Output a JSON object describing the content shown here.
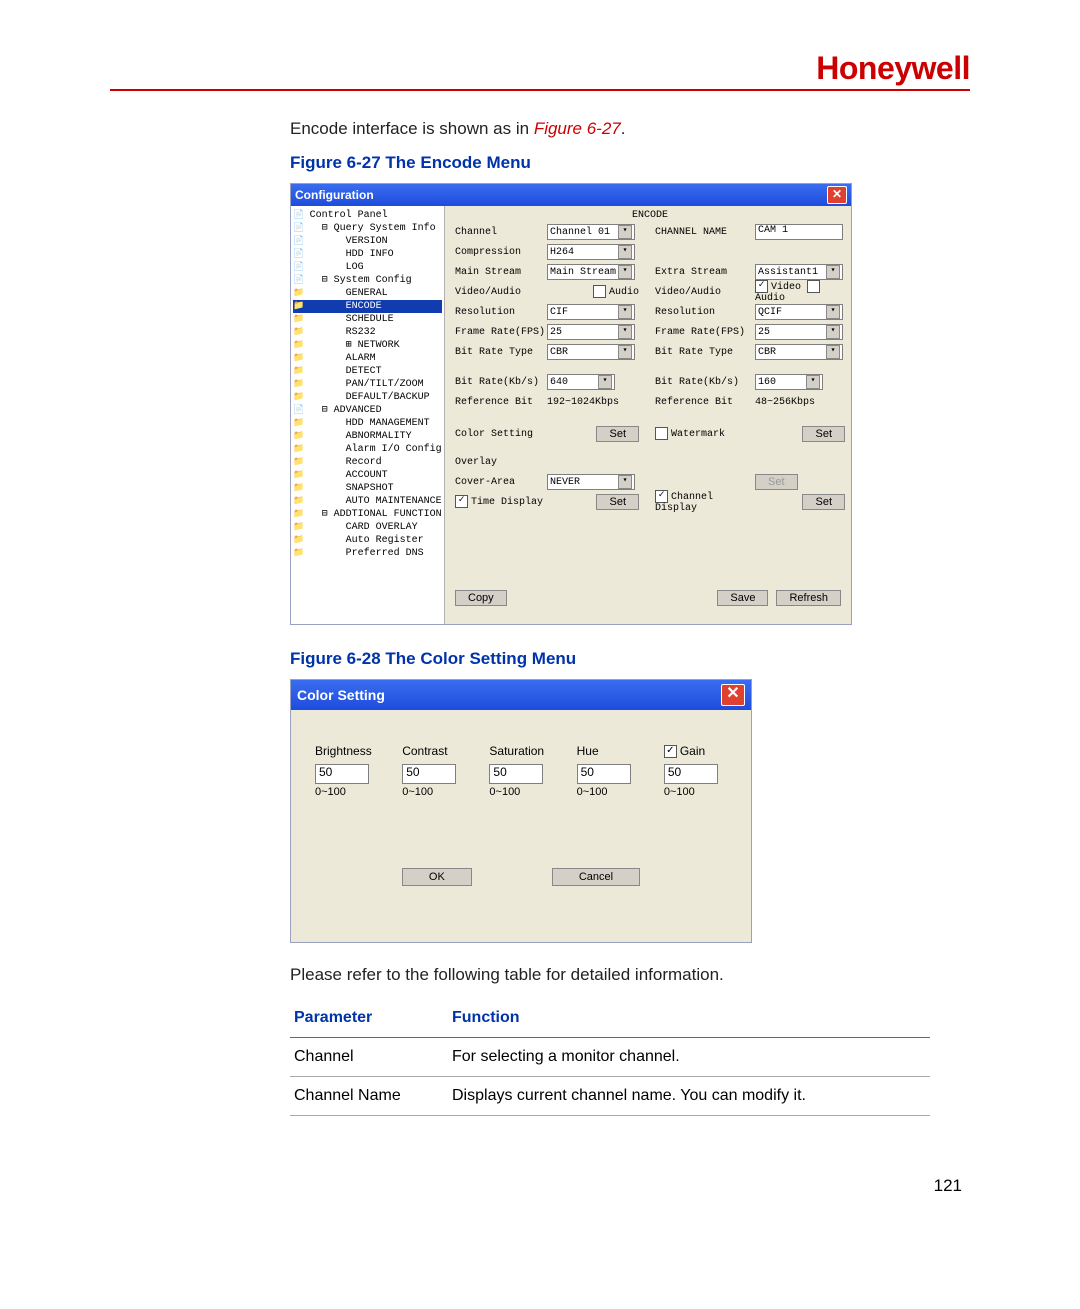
{
  "brand": "Honeywell",
  "intro_prefix": "Encode interface is shown as in ",
  "intro_figref": "Figure 6-27",
  "intro_suffix": ".",
  "caption27": "Figure 6-27 The Encode Menu",
  "caption28": "Figure 6-28 The Color Setting Menu",
  "after28": "Please refer to the following table for detailed information.",
  "page_number": "121",
  "win27": {
    "title": "Configuration",
    "tree": [
      {
        "t": "Control Panel",
        "i": 0,
        "k": "file"
      },
      {
        "t": "Query System Info",
        "i": 1,
        "k": "file",
        "pre": "⊟ "
      },
      {
        "t": "VERSION",
        "i": 3,
        "k": "file"
      },
      {
        "t": "HDD INFO",
        "i": 3,
        "k": "file"
      },
      {
        "t": "LOG",
        "i": 3,
        "k": "file"
      },
      {
        "t": "System Config",
        "i": 1,
        "k": "file",
        "pre": "⊟ "
      },
      {
        "t": "GENERAL",
        "i": 3,
        "k": "fold"
      },
      {
        "t": "ENCODE",
        "i": 3,
        "k": "fold",
        "sel": true
      },
      {
        "t": "SCHEDULE",
        "i": 3,
        "k": "fold"
      },
      {
        "t": "RS232",
        "i": 3,
        "k": "fold"
      },
      {
        "t": "NETWORK",
        "i": 3,
        "k": "fold",
        "pre": "⊞ "
      },
      {
        "t": "ALARM",
        "i": 3,
        "k": "fold"
      },
      {
        "t": "DETECT",
        "i": 3,
        "k": "fold"
      },
      {
        "t": "PAN/TILT/ZOOM",
        "i": 3,
        "k": "fold"
      },
      {
        "t": "DEFAULT/BACKUP",
        "i": 3,
        "k": "fold"
      },
      {
        "t": "ADVANCED",
        "i": 1,
        "k": "file",
        "pre": "⊟ "
      },
      {
        "t": "HDD MANAGEMENT",
        "i": 3,
        "k": "fold"
      },
      {
        "t": "ABNORMALITY",
        "i": 3,
        "k": "fold"
      },
      {
        "t": "Alarm I/O Config",
        "i": 3,
        "k": "fold"
      },
      {
        "t": "Record",
        "i": 3,
        "k": "fold"
      },
      {
        "t": "ACCOUNT",
        "i": 3,
        "k": "fold"
      },
      {
        "t": "SNAPSHOT",
        "i": 3,
        "k": "fold"
      },
      {
        "t": "AUTO MAINTENANCE",
        "i": 3,
        "k": "fold"
      },
      {
        "t": "ADDTIONAL FUNCTION",
        "i": 1,
        "k": "fold",
        "pre": "⊟ "
      },
      {
        "t": "CARD OVERLAY",
        "i": 3,
        "k": "fold"
      },
      {
        "t": "Auto Register",
        "i": 3,
        "k": "fold"
      },
      {
        "t": "Preferred DNS",
        "i": 3,
        "k": "fold"
      }
    ],
    "panel_title": "ENCODE",
    "labels": {
      "channel": "Channel",
      "channel_name": "CHANNEL NAME",
      "compression": "Compression",
      "main_stream": "Main Stream",
      "extra_stream": "Extra Stream",
      "video_audio": "Video/Audio",
      "audio": "Audio",
      "video": "Video",
      "resolution": "Resolution",
      "fps": "Frame Rate(FPS)",
      "brt": "Bit Rate Type",
      "brk": "Bit Rate(Kb/s)",
      "refbit": "Reference Bit",
      "color_setting": "Color Setting",
      "watermark": "Watermark",
      "overlay": "Overlay",
      "cover_area": "Cover-Area",
      "time_display": "Time Display",
      "channel_display": "Channel Display"
    },
    "values": {
      "channel": "Channel 01",
      "channel_name": "CAM 1",
      "compression": "H264",
      "main_stream": "Main Stream",
      "extra_stream": "Assistant1",
      "resolution_l": "CIF",
      "resolution_r": "QCIF",
      "fps_l": "25",
      "fps_r": "25",
      "brt_l": "CBR",
      "brt_r": "CBR",
      "brk_l": "640",
      "brk_r": "160",
      "refbit_l": "192~1024Kbps",
      "refbit_r": "48~256Kbps",
      "cover_area": "NEVER"
    },
    "buttons": {
      "set": "Set",
      "copy": "Copy",
      "save": "Save",
      "refresh": "Refresh"
    }
  },
  "win28": {
    "title": "Color Setting",
    "cols": [
      {
        "label": "Brightness",
        "value": "50",
        "range": "0~100",
        "chk": false
      },
      {
        "label": "Contrast",
        "value": "50",
        "range": "0~100",
        "chk": false
      },
      {
        "label": "Saturation",
        "value": "50",
        "range": "0~100",
        "chk": false
      },
      {
        "label": "Hue",
        "value": "50",
        "range": "0~100",
        "chk": false
      },
      {
        "label": "Gain",
        "value": "50",
        "range": "0~100",
        "chk": true
      }
    ],
    "ok": "OK",
    "cancel": "Cancel"
  },
  "table": {
    "h1": "Parameter",
    "h2": "Function",
    "rows": [
      {
        "p": "Channel",
        "f": "For selecting a monitor channel."
      },
      {
        "p": "Channel Name",
        "f": "Displays current channel name. You can modify it."
      }
    ]
  },
  "colors": {
    "brand": "#cc0000",
    "caption": "#0033aa",
    "titlebar_top": "#3a6df0",
    "titlebar_bottom": "#1d4cdc",
    "panel_bg": "#ece9d8",
    "close_bg": "#e04030"
  }
}
